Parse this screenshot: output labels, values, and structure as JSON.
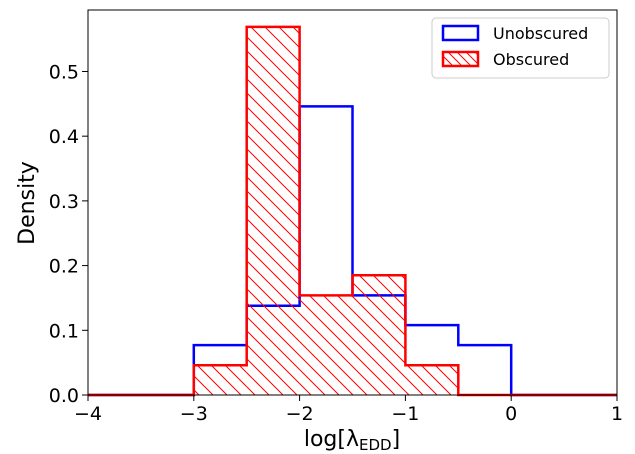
{
  "chart_data": {
    "type": "histogram",
    "xlabel": "log[λ",
    "xlabel_sub": "EDD",
    "xlabel_close": "]",
    "ylabel": "Density",
    "xlim": [
      -4,
      1
    ],
    "ylim": [
      0,
      0.595
    ],
    "x_ticks": [
      -4,
      -3,
      -2,
      -1,
      0,
      1
    ],
    "x_tick_labels": [
      "−4",
      "−3",
      "−2",
      "−1",
      "0",
      "1"
    ],
    "y_ticks": [
      0.0,
      0.1,
      0.2,
      0.3,
      0.4,
      0.5
    ],
    "y_tick_labels": [
      "0.0",
      "0.1",
      "0.2",
      "0.3",
      "0.4",
      "0.5"
    ],
    "bin_edges": [
      -4.0,
      -3.5,
      -3.0,
      -2.5,
      -2.0,
      -1.5,
      -1.0,
      -0.5,
      0.0,
      0.5,
      1.0
    ],
    "series": [
      {
        "name": "Unobscured",
        "style": "step",
        "hatch": false,
        "color": "#0000ff",
        "values": [
          0,
          0,
          0.077,
          0.138,
          0.446,
          0.154,
          0.108,
          0.077,
          0,
          0
        ]
      },
      {
        "name": "Obscured",
        "style": "step",
        "hatch": true,
        "color": "#ff0000",
        "values": [
          0,
          0,
          0.046,
          0.569,
          0.154,
          0.185,
          0.046,
          0,
          0,
          0
        ]
      }
    ],
    "legend_position": "top-right",
    "grid": false
  }
}
